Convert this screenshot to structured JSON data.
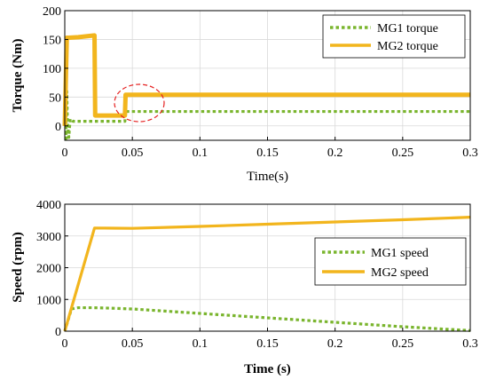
{
  "colors": {
    "mg1": "#7ab52e",
    "mg2": "#f2b51d",
    "circle": "#e52020",
    "axis": "#000000",
    "grid": "#d9d9d9"
  },
  "chart_data": [
    {
      "type": "line",
      "xlabel": "Time(s)",
      "ylabel": "Torque (Nm)",
      "xlim": [
        0,
        0.3
      ],
      "ylim": [
        -25,
        200
      ],
      "xticks": [
        0,
        0.05,
        0.1,
        0.15,
        0.2,
        0.25,
        0.3
      ],
      "xtick_labels": [
        "0",
        "0.05",
        "0.1",
        "0.15",
        "0.2",
        "0.25",
        "0.3"
      ],
      "yticks": [
        0,
        50,
        100,
        150,
        200
      ],
      "ytick_labels": [
        "0",
        "50",
        "100",
        "150",
        "200"
      ],
      "grid": true,
      "legend_position": "top-right",
      "annotation": "dashed red circle around the torque step near t = 0.05 s",
      "series": [
        {
          "name": "MG1 torque",
          "style": "dotted",
          "x": [
            0,
            0.0005,
            0.001,
            0.0015,
            0.002,
            0.003,
            0.004,
            0.006,
            0.01,
            0.02,
            0.03,
            0.04,
            0.0445,
            0.045,
            0.05,
            0.1,
            0.15,
            0.2,
            0.25,
            0.3
          ],
          "y": [
            0,
            75,
            -22,
            60,
            5,
            -20,
            12,
            8,
            8,
            8,
            8,
            8,
            8,
            25,
            25,
            25,
            25,
            25,
            25,
            25
          ]
        },
        {
          "name": "MG2 torque",
          "style": "solid",
          "x": [
            0,
            0.0015,
            0.003,
            0.01,
            0.022,
            0.0225,
            0.03,
            0.04,
            0.0445,
            0.045,
            0.06,
            0.1,
            0.15,
            0.2,
            0.25,
            0.3
          ],
          "y": [
            0,
            153,
            153,
            154,
            157,
            18,
            18,
            18,
            18,
            54,
            54,
            54,
            54,
            54,
            54,
            54
          ]
        }
      ]
    },
    {
      "type": "line",
      "xlabel": "Time (s)",
      "ylabel": "Speed (rpm)",
      "xlim": [
        0,
        0.3
      ],
      "ylim": [
        0,
        4000
      ],
      "xticks": [
        0,
        0.05,
        0.1,
        0.15,
        0.2,
        0.25,
        0.3
      ],
      "xtick_labels": [
        "0",
        "0.05",
        "0.1",
        "0.15",
        "0.2",
        "0.25",
        "0.3"
      ],
      "yticks": [
        0,
        1000,
        2000,
        3000,
        4000
      ],
      "ytick_labels": [
        "0",
        "1000",
        "2000",
        "3000",
        "4000"
      ],
      "grid": true,
      "legend_position": "right",
      "series": [
        {
          "name": "MG1 speed",
          "style": "dotted",
          "x": [
            0,
            0.005,
            0.01,
            0.02,
            0.03,
            0.05,
            0.1,
            0.15,
            0.2,
            0.25,
            0.3
          ],
          "y": [
            0,
            700,
            740,
            740,
            730,
            700,
            560,
            420,
            280,
            140,
            20
          ]
        },
        {
          "name": "MG2 speed",
          "style": "solid",
          "x": [
            0,
            0.022,
            0.05,
            0.1,
            0.15,
            0.2,
            0.25,
            0.3
          ],
          "y": [
            0,
            3250,
            3240,
            3300,
            3370,
            3440,
            3510,
            3590
          ]
        }
      ]
    }
  ]
}
